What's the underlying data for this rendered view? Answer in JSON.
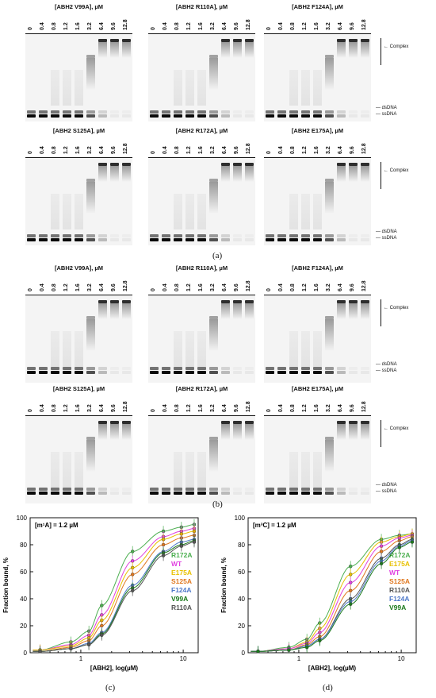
{
  "panels": {
    "a_label": "(a)",
    "b_label": "(b)",
    "c_label": "(c)",
    "d_label": "(d)"
  },
  "concentrations": [
    "0",
    "0.4",
    "0.8",
    "1.2",
    "1.6",
    "3.2",
    "6.4",
    "9.6",
    "12.8"
  ],
  "gel_labels": {
    "complex": "Complex",
    "dsdna": "dsDNA",
    "ssdna": "ssDNA"
  },
  "panel_a": {
    "row1": [
      "[ABH2 V99A], µM",
      "[ABH2 R110A], µM",
      "[ABH2 F124A], µM"
    ],
    "row2": [
      "[ABH2 S125A], µM",
      "[ABH2 R172A], µM",
      "[ABH2 E175A], µM"
    ]
  },
  "panel_b": {
    "row1": [
      "[ABH2 V99A], µM",
      "[ABH2 R110A], µM",
      "[ABH2 F124A], µM"
    ],
    "row2": [
      "[ABH2 S125A], µM",
      "[ABH2 R172A], µM",
      "[ABH2 E175A], µM"
    ]
  },
  "chart_data": [
    {
      "type": "line",
      "annotation": "[m¹A] = 1.2 µM",
      "xlabel": "[ABH2], log(µM)",
      "ylabel": "Fraction bound, %",
      "x_scale": "log",
      "xlim": [
        0.32,
        14
      ],
      "ylim": [
        0,
        100
      ],
      "yticks": [
        0,
        20,
        40,
        60,
        80,
        100
      ],
      "xticks": [
        1,
        10
      ],
      "x": [
        0.4,
        0.8,
        1.2,
        1.6,
        3.2,
        6.4,
        9.6,
        12.8
      ],
      "series": [
        {
          "name": "R172A",
          "color": "#4caf50",
          "values": [
            2,
            8,
            16,
            35,
            75,
            90,
            93,
            95
          ]
        },
        {
          "name": "WT",
          "color": "#e040e0",
          "values": [
            2,
            6,
            13,
            28,
            68,
            86,
            90,
            92
          ]
        },
        {
          "name": "E175A",
          "color": "#e8c000",
          "values": [
            2,
            5,
            11,
            24,
            63,
            84,
            88,
            90
          ]
        },
        {
          "name": "S125A",
          "color": "#e07820",
          "values": [
            1,
            4,
            9,
            20,
            58,
            80,
            85,
            87
          ]
        },
        {
          "name": "F124A",
          "color": "#4f79c8",
          "values": [
            1,
            3,
            7,
            15,
            50,
            75,
            82,
            84
          ]
        },
        {
          "name": "V99A",
          "color": "#1b7a1b",
          "values": [
            1,
            3,
            6,
            14,
            48,
            74,
            80,
            83
          ]
        },
        {
          "name": "R110A",
          "color": "#555555",
          "values": [
            1,
            3,
            6,
            13,
            46,
            72,
            79,
            82
          ]
        }
      ]
    },
    {
      "type": "line",
      "annotation": "[m³C] = 1.2 µM",
      "xlabel": "[ABH2], log(µM)",
      "ylabel": "Fraction bound, %",
      "x_scale": "log",
      "xlim": [
        0.32,
        14
      ],
      "ylim": [
        0,
        100
      ],
      "yticks": [
        0,
        20,
        40,
        60,
        80,
        100
      ],
      "xticks": [
        1,
        10
      ],
      "x": [
        0.4,
        0.8,
        1.2,
        1.6,
        3.2,
        6.4,
        9.6,
        12.8
      ],
      "series": [
        {
          "name": "R172A",
          "color": "#4caf50",
          "values": [
            1,
            4,
            10,
            22,
            64,
            84,
            87,
            88
          ]
        },
        {
          "name": "E175A",
          "color": "#e8c000",
          "values": [
            1,
            3,
            8,
            18,
            58,
            82,
            86,
            88
          ]
        },
        {
          "name": "WT",
          "color": "#e040e0",
          "values": [
            1,
            3,
            7,
            15,
            52,
            79,
            85,
            87
          ]
        },
        {
          "name": "S125A",
          "color": "#e07820",
          "values": [
            1,
            2,
            6,
            12,
            46,
            75,
            83,
            86
          ]
        },
        {
          "name": "R110A",
          "color": "#555555",
          "values": [
            1,
            2,
            5,
            10,
            40,
            70,
            80,
            84
          ]
        },
        {
          "name": "F124A",
          "color": "#4f79c8",
          "values": [
            1,
            2,
            5,
            10,
            38,
            68,
            79,
            83
          ]
        },
        {
          "name": "V99A",
          "color": "#1b7a1b",
          "values": [
            1,
            2,
            4,
            9,
            36,
            66,
            78,
            82
          ]
        }
      ]
    }
  ],
  "colors": {
    "band": "#0a0a0a",
    "gel_background": "#f4f4f4"
  }
}
